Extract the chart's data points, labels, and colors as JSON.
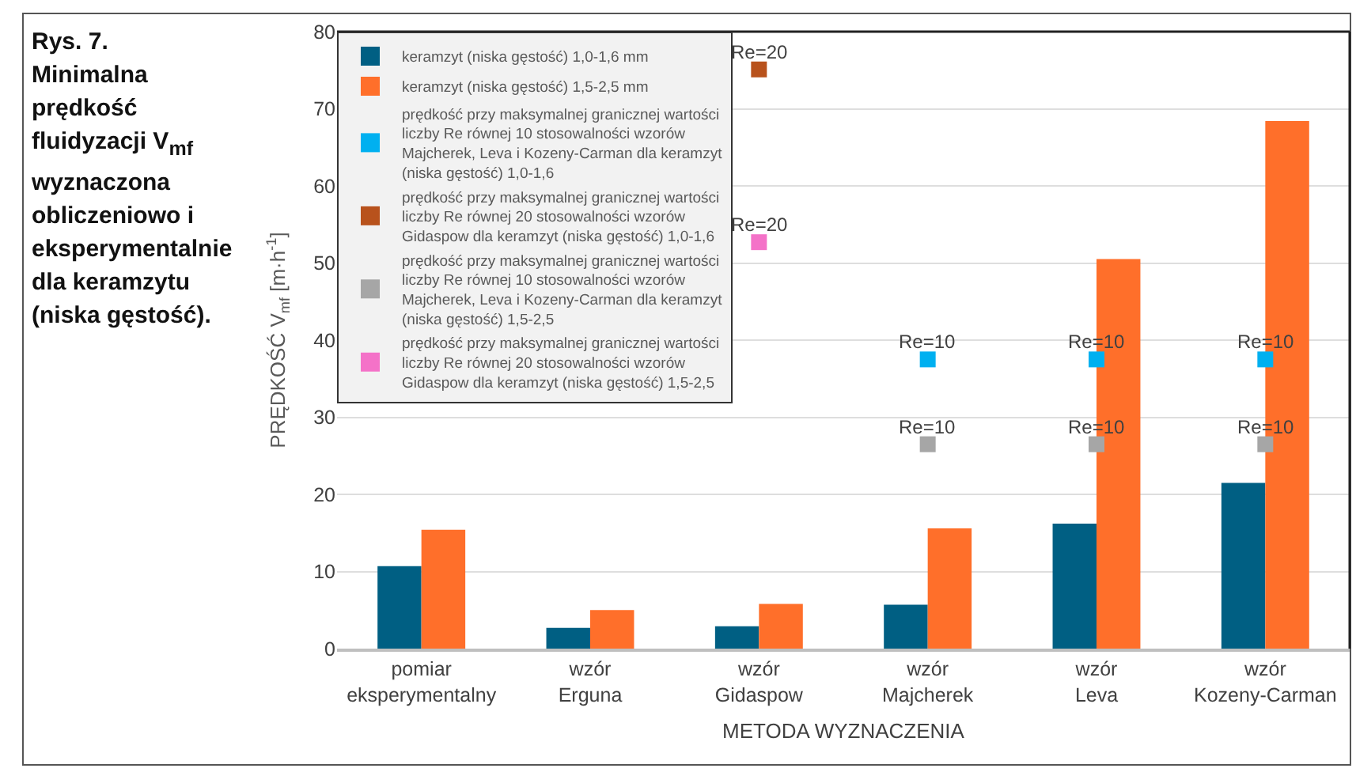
{
  "chart_data": {
    "type": "bar",
    "title": "Rys. 7. Minimalna prędkość fluidyzacji V$_{mf}$ wyznaczona obliczeniowo i eksperymentalnie dla keramzytu (niska gęstość).",
    "xlabel": "METODA WYZNACZENIA",
    "ylabel": "PRĘDKOŚĆ V$_{mf}$ [m·h$^{-1}$]",
    "categories": [
      "pomiar eksperymentalny",
      "wzór Erguna",
      "wzór Gidaspow",
      "wzór Majcherek",
      "wzór Leva",
      "wzór Kozeny-Carman"
    ],
    "series": [
      {
        "name": "keramzyt (niska gęstość) 1,0-1,6 mm",
        "color": "#005f83",
        "values": [
          10.7,
          2.7,
          2.9,
          5.7,
          16.2,
          21.5
        ]
      },
      {
        "name": "keramzyt (niska gęstość) 1,5-2,5 mm",
        "color": "#ff6f2a",
        "values": [
          15.4,
          5.0,
          5.8,
          15.6,
          50.5,
          68.4
        ]
      },
      {
        "type": "scatter",
        "name": "prędkość przy maksymalnej granicznej wartości liczby Re równej 10 stosowalności wzorów Majcherek, Leva i Kozeny-Carman dla keramzyt (niska gęstość) 1,0-1,6",
        "color": "#00b0f0",
        "values": [
          null,
          null,
          null,
          37.5,
          37.5,
          37.5
        ]
      },
      {
        "type": "scatter",
        "name": "prędkość przy maksymalnej granicznej wartości liczby Re równej 20 stosowalności wzorów Gidaspow dla keramzyt (niska gęstość) 1,0-1,6",
        "color": "#b8521c",
        "values": [
          null,
          null,
          75.1,
          null,
          null,
          null
        ]
      },
      {
        "type": "scatter",
        "name": "prędkość przy maksymalnej granicznej wartości liczby Re równej 10 stosowalności wzorów Majcherek, Leva i Kozeny-Carman dla keramzyt (niska gęstość) 1,5-2,5",
        "color": "#a6a6a6",
        "values": [
          null,
          null,
          null,
          26.5,
          26.5,
          26.5
        ]
      },
      {
        "type": "scatter",
        "name": "prędkość przy maksymalnej granicznej wartości liczby Re równej 20 stosowalności wzorów Gidaspow dla keramzyt (niska gęstość) 1,5-2,5",
        "color": "#f472c8",
        "values": [
          null,
          null,
          52.7,
          null,
          null,
          null
        ]
      }
    ],
    "annotations": [
      {
        "text": "Re=20",
        "x": "wzór Gidaspow",
        "y": 75.1
      },
      {
        "text": "Re=20",
        "x": "wzór Gidaspow",
        "y": 52.7
      },
      {
        "text": "Re=10",
        "x": "wzór Majcherek",
        "y": 37.5
      },
      {
        "text": "Re=10",
        "x": "wzór Leva",
        "y": 37.5
      },
      {
        "text": "Re=10",
        "x": "wzór Kozeny-Carman",
        "y": 37.5
      },
      {
        "text": "Re=10",
        "x": "wzór Majcherek",
        "y": 26.5
      },
      {
        "text": "Re=10",
        "x": "wzór Leva",
        "y": 26.5
      },
      {
        "text": "Re=10",
        "x": "wzór Kozeny-Carman",
        "y": 26.5
      }
    ],
    "marker": "square",
    "ylim": [
      0,
      80
    ],
    "yticks": [
      0,
      10,
      20,
      30,
      40,
      50,
      60,
      70,
      80
    ],
    "grid": "y",
    "legend": "top left"
  }
}
